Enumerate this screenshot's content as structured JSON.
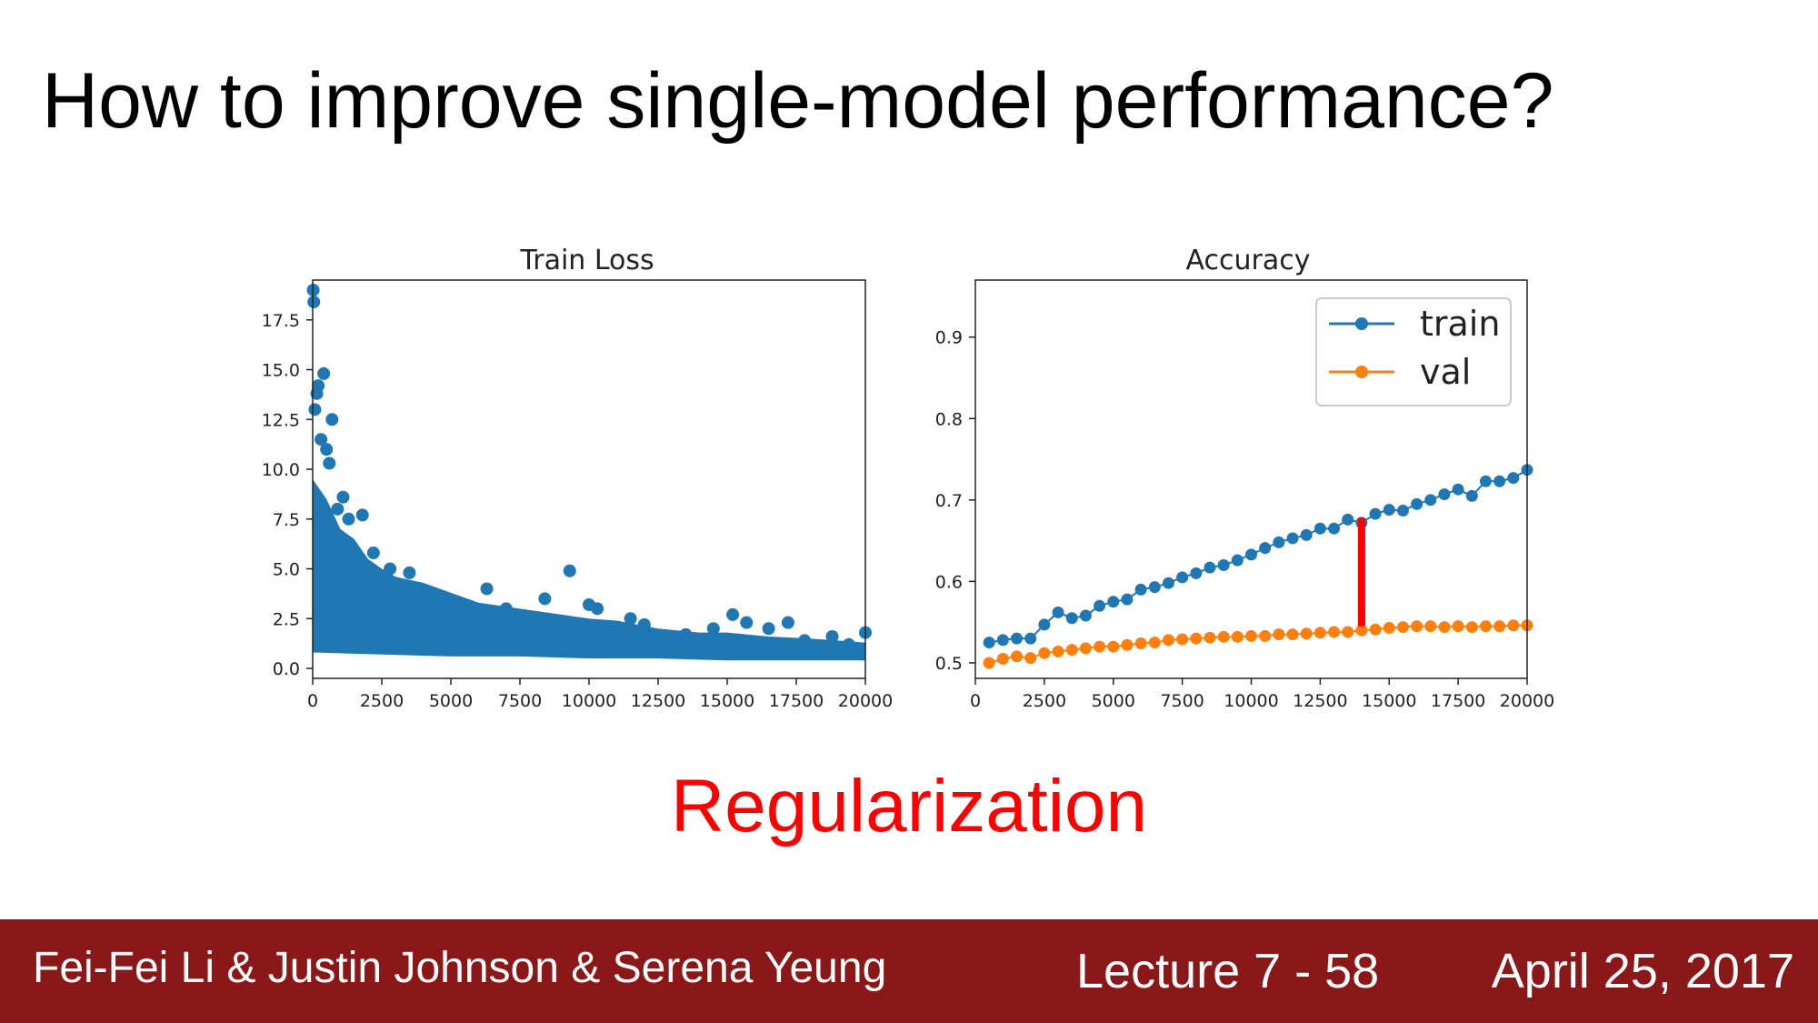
{
  "slide": {
    "title": "How to improve single-model performance?",
    "subtitle": "Regularization",
    "subtitle_color": "#ff0000"
  },
  "footer": {
    "authors": "Fei-Fei Li & Justin Johnson & Serena Yeung",
    "lecture": "Lecture 7 - 58",
    "date": "April 25, 2017",
    "background_color": "#8b1818"
  },
  "chart_data": [
    {
      "type": "scatter",
      "title": "Train Loss",
      "xlabel": "",
      "ylabel": "",
      "xlim": [
        0,
        20000
      ],
      "ylim": [
        -0.5,
        19.5
      ],
      "xticks": [
        0,
        2500,
        5000,
        7500,
        10000,
        12500,
        15000,
        17500,
        20000
      ],
      "yticks": [
        "0.0",
        "2.5",
        "5.0",
        "7.5",
        "10.0",
        "12.5",
        "15.0",
        "17.5"
      ],
      "grid": false,
      "color": "#1f77b4",
      "series": [
        {
          "points": [
            [
              20,
              19.0
            ],
            [
              40,
              18.4
            ],
            [
              80,
              13.0
            ],
            [
              150,
              13.8
            ],
            [
              200,
              14.2
            ],
            [
              400,
              14.8
            ],
            [
              300,
              11.5
            ],
            [
              500,
              11.0
            ],
            [
              600,
              10.3
            ],
            [
              700,
              12.5
            ],
            [
              900,
              8.0
            ],
            [
              1100,
              8.6
            ],
            [
              1300,
              7.5
            ],
            [
              1800,
              7.7
            ],
            [
              2200,
              5.8
            ],
            [
              2800,
              5.0
            ],
            [
              3500,
              4.8
            ],
            [
              6300,
              4.0
            ],
            [
              8400,
              3.5
            ],
            [
              9300,
              4.9
            ],
            [
              10000,
              3.2
            ],
            [
              10300,
              3.0
            ],
            [
              11500,
              2.5
            ],
            [
              15200,
              2.7
            ],
            [
              15700,
              2.3
            ],
            [
              16500,
              2.0
            ],
            [
              17200,
              2.3
            ],
            [
              18800,
              1.6
            ],
            [
              20000,
              1.8
            ],
            [
              2500,
              3.5
            ],
            [
              4000,
              3.6
            ],
            [
              5000,
              3.3
            ],
            [
              7000,
              3.0
            ],
            [
              12000,
              2.2
            ],
            [
              13500,
              1.7
            ],
            [
              14500,
              2.0
            ],
            [
              17800,
              1.4
            ],
            [
              19400,
              1.2
            ]
          ],
          "band_upper": [
            [
              0,
              9.5
            ],
            [
              500,
              8.5
            ],
            [
              1000,
              7.0
            ],
            [
              1500,
              6.5
            ],
            [
              2000,
              5.5
            ],
            [
              2500,
              5.0
            ],
            [
              3000,
              4.6
            ],
            [
              4000,
              4.3
            ],
            [
              5000,
              3.8
            ],
            [
              6000,
              3.3
            ],
            [
              7500,
              3.0
            ],
            [
              9000,
              2.7
            ],
            [
              10000,
              2.5
            ],
            [
              11000,
              2.4
            ],
            [
              12500,
              2.0
            ],
            [
              14000,
              1.8
            ],
            [
              15000,
              1.8
            ],
            [
              16500,
              1.6
            ],
            [
              18000,
              1.5
            ],
            [
              19000,
              1.4
            ],
            [
              20000,
              1.3
            ]
          ],
          "band_lower": [
            [
              0,
              0.8
            ],
            [
              2500,
              0.7
            ],
            [
              5000,
              0.6
            ],
            [
              7500,
              0.6
            ],
            [
              10000,
              0.5
            ],
            [
              12500,
              0.5
            ],
            [
              15000,
              0.4
            ],
            [
              17500,
              0.4
            ],
            [
              20000,
              0.4
            ]
          ]
        }
      ]
    },
    {
      "type": "line",
      "title": "Accuracy",
      "xlabel": "",
      "ylabel": "",
      "xlim": [
        0,
        20000
      ],
      "ylim": [
        0.481,
        0.97
      ],
      "xticks": [
        0,
        2500,
        5000,
        7500,
        10000,
        12500,
        15000,
        17500,
        20000
      ],
      "yticks": [
        "0.5",
        "0.6",
        "0.7",
        "0.8",
        "0.9"
      ],
      "grid": false,
      "legend_position": "top-right",
      "x": [
        500,
        1000,
        1500,
        2000,
        2500,
        3000,
        3500,
        4000,
        4500,
        5000,
        5500,
        6000,
        6500,
        7000,
        7500,
        8000,
        8500,
        9000,
        9500,
        10000,
        10500,
        11000,
        11500,
        12000,
        12500,
        13000,
        13500,
        14000,
        14500,
        15000,
        15500,
        16000,
        16500,
        17000,
        17500,
        18000,
        18500,
        19000,
        19500,
        20000
      ],
      "series": [
        {
          "name": "train",
          "color": "#1f77b4",
          "values": [
            0.525,
            0.528,
            0.53,
            0.53,
            0.547,
            0.562,
            0.555,
            0.558,
            0.57,
            0.575,
            0.578,
            0.59,
            0.593,
            0.598,
            0.605,
            0.61,
            0.617,
            0.62,
            0.626,
            0.633,
            0.641,
            0.648,
            0.653,
            0.657,
            0.665,
            0.665,
            0.676,
            0.672,
            0.683,
            0.688,
            0.687,
            0.695,
            0.7,
            0.707,
            0.713,
            0.705,
            0.723,
            0.723,
            0.727,
            0.737
          ]
        },
        {
          "name": "val",
          "color": "#ff7f0e",
          "values": [
            0.5,
            0.505,
            0.508,
            0.506,
            0.512,
            0.514,
            0.516,
            0.518,
            0.52,
            0.52,
            0.522,
            0.524,
            0.525,
            0.528,
            0.529,
            0.53,
            0.531,
            0.532,
            0.532,
            0.533,
            0.533,
            0.535,
            0.535,
            0.536,
            0.537,
            0.538,
            0.538,
            0.54,
            0.541,
            0.543,
            0.544,
            0.545,
            0.545,
            0.544,
            0.545,
            0.544,
            0.545,
            0.545,
            0.546,
            0.546
          ]
        }
      ],
      "annotation": {
        "type": "vertical-gap-bar",
        "x": 14000,
        "y_top": 0.678,
        "y_bottom": 0.545,
        "color": "#ff0000"
      }
    }
  ]
}
